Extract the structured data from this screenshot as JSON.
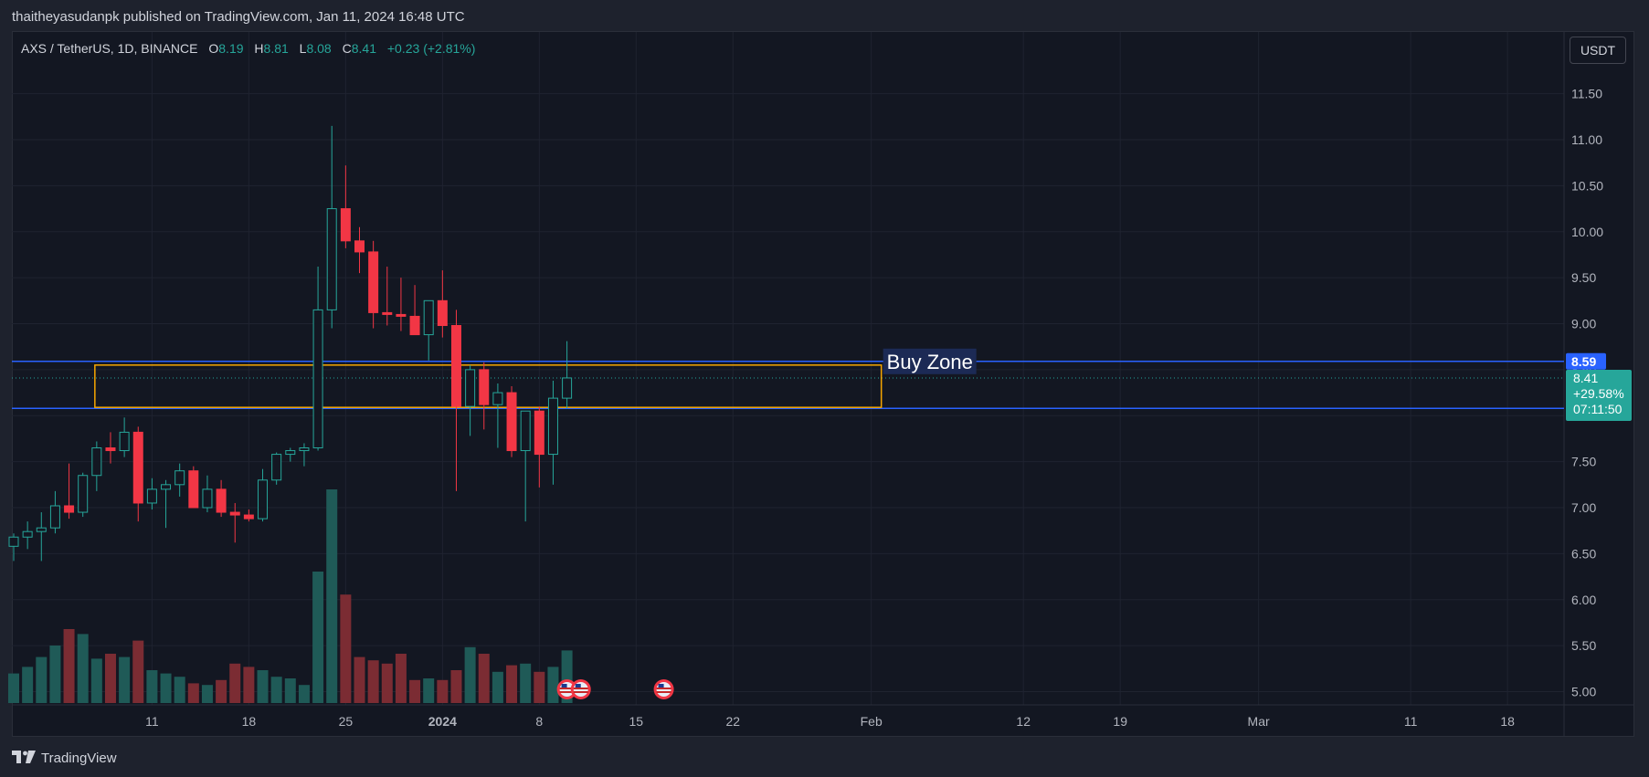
{
  "header": {
    "published_text": "thaitheyasudanpk published on TradingView.com, Jan 11, 2024 16:48 UTC"
  },
  "legend": {
    "symbol": "AXS / TetherUS, 1D, BINANCE",
    "o_label": "O",
    "o": "8.19",
    "h_label": "H",
    "h": "8.81",
    "l_label": "L",
    "l": "8.08",
    "c_label": "C",
    "c": "8.41",
    "change": "+0.23 (+2.81%)"
  },
  "currency_button": "USDT",
  "footer": {
    "brand": "TradingView"
  },
  "colors": {
    "up": "#26a69a",
    "down": "#f23645",
    "zone": "#f7a600",
    "level": "#2962ff",
    "background": "#131722"
  },
  "chart_data": {
    "type": "candlestick",
    "ylim": [
      4.8,
      11.8
    ],
    "y_ticks": [
      "11.50",
      "11.00",
      "10.50",
      "10.00",
      "9.50",
      "9.00",
      "8.50",
      "8.00",
      "7.50",
      "7.00",
      "6.50",
      "6.00",
      "5.50",
      "5.00"
    ],
    "x_ticks": [
      {
        "label": "11",
        "day": 10
      },
      {
        "label": "18",
        "day": 17
      },
      {
        "label": "25",
        "day": 24
      },
      {
        "label": "2024",
        "day": 31
      },
      {
        "label": "8",
        "day": 38
      },
      {
        "label": "15",
        "day": 45
      },
      {
        "label": "22",
        "day": 52
      },
      {
        "label": "Feb",
        "day": 62
      },
      {
        "label": "12",
        "day": 73
      },
      {
        "label": "19",
        "day": 80
      },
      {
        "label": "Mar",
        "day": 90
      },
      {
        "label": "11",
        "day": 101
      },
      {
        "label": "18",
        "day": 108
      }
    ],
    "candles": [
      {
        "o": 6.58,
        "h": 6.72,
        "l": 6.42,
        "c": 6.68,
        "vol": 0.18
      },
      {
        "o": 6.68,
        "h": 6.85,
        "l": 6.55,
        "c": 6.74,
        "vol": 0.22
      },
      {
        "o": 6.74,
        "h": 6.95,
        "l": 6.42,
        "c": 6.78,
        "vol": 0.28
      },
      {
        "o": 6.78,
        "h": 7.18,
        "l": 6.72,
        "c": 7.02,
        "vol": 0.35
      },
      {
        "o": 7.02,
        "h": 7.48,
        "l": 6.88,
        "c": 6.95,
        "vol": 0.45
      },
      {
        "o": 6.95,
        "h": 7.38,
        "l": 6.9,
        "c": 7.35,
        "vol": 0.42
      },
      {
        "o": 7.35,
        "h": 7.72,
        "l": 7.18,
        "c": 7.65,
        "vol": 0.27
      },
      {
        "o": 7.65,
        "h": 7.82,
        "l": 7.48,
        "c": 7.62,
        "vol": 0.3
      },
      {
        "o": 7.62,
        "h": 7.98,
        "l": 7.55,
        "c": 7.82,
        "vol": 0.28
      },
      {
        "o": 7.82,
        "h": 7.88,
        "l": 6.85,
        "c": 7.05,
        "vol": 0.38
      },
      {
        "o": 7.05,
        "h": 7.32,
        "l": 6.98,
        "c": 7.2,
        "vol": 0.2
      },
      {
        "o": 7.2,
        "h": 7.3,
        "l": 6.78,
        "c": 7.25,
        "vol": 0.18
      },
      {
        "o": 7.25,
        "h": 7.48,
        "l": 7.12,
        "c": 7.4,
        "vol": 0.16
      },
      {
        "o": 7.4,
        "h": 7.45,
        "l": 7.0,
        "c": 7.0,
        "vol": 0.12
      },
      {
        "o": 7.0,
        "h": 7.35,
        "l": 6.95,
        "c": 7.2,
        "vol": 0.11
      },
      {
        "o": 7.2,
        "h": 7.3,
        "l": 6.9,
        "c": 6.95,
        "vol": 0.14
      },
      {
        "o": 6.95,
        "h": 7.05,
        "l": 6.62,
        "c": 6.92,
        "vol": 0.24
      },
      {
        "o": 6.92,
        "h": 6.98,
        "l": 6.85,
        "c": 6.88,
        "vol": 0.22
      },
      {
        "o": 6.88,
        "h": 7.42,
        "l": 6.85,
        "c": 7.3,
        "vol": 0.2
      },
      {
        "o": 7.3,
        "h": 7.6,
        "l": 7.25,
        "c": 7.58,
        "vol": 0.16
      },
      {
        "o": 7.58,
        "h": 7.65,
        "l": 7.5,
        "c": 7.62,
        "vol": 0.15
      },
      {
        "o": 7.62,
        "h": 7.7,
        "l": 7.45,
        "c": 7.65,
        "vol": 0.11
      },
      {
        "o": 7.65,
        "h": 9.62,
        "l": 7.62,
        "c": 9.15,
        "vol": 0.8
      },
      {
        "o": 9.15,
        "h": 11.15,
        "l": 8.95,
        "c": 10.25,
        "vol": 1.3
      },
      {
        "o": 10.25,
        "h": 10.72,
        "l": 9.82,
        "c": 9.9,
        "vol": 0.66
      },
      {
        "o": 9.9,
        "h": 10.05,
        "l": 9.55,
        "c": 9.78,
        "vol": 0.28
      },
      {
        "o": 9.78,
        "h": 9.9,
        "l": 8.95,
        "c": 9.12,
        "vol": 0.26
      },
      {
        "o": 9.12,
        "h": 9.62,
        "l": 8.98,
        "c": 9.1,
        "vol": 0.24
      },
      {
        "o": 9.1,
        "h": 9.5,
        "l": 8.92,
        "c": 9.08,
        "vol": 0.3
      },
      {
        "o": 9.08,
        "h": 9.42,
        "l": 8.9,
        "c": 8.88,
        "vol": 0.14
      },
      {
        "o": 8.88,
        "h": 9.25,
        "l": 8.6,
        "c": 9.25,
        "vol": 0.15
      },
      {
        "o": 9.25,
        "h": 9.58,
        "l": 8.85,
        "c": 8.98,
        "vol": 0.14
      },
      {
        "o": 8.98,
        "h": 9.15,
        "l": 7.18,
        "c": 8.1,
        "vol": 0.2
      },
      {
        "o": 8.1,
        "h": 8.55,
        "l": 7.78,
        "c": 8.5,
        "vol": 0.34
      },
      {
        "o": 8.5,
        "h": 8.58,
        "l": 7.85,
        "c": 8.12,
        "vol": 0.3
      },
      {
        "o": 8.12,
        "h": 8.35,
        "l": 7.65,
        "c": 8.25,
        "vol": 0.19
      },
      {
        "o": 8.25,
        "h": 8.32,
        "l": 7.55,
        "c": 7.62,
        "vol": 0.23
      },
      {
        "o": 7.62,
        "h": 8.05,
        "l": 6.85,
        "c": 8.05,
        "vol": 0.24
      },
      {
        "o": 8.05,
        "h": 8.1,
        "l": 7.22,
        "c": 7.58,
        "vol": 0.19
      },
      {
        "o": 7.58,
        "h": 8.38,
        "l": 7.25,
        "c": 8.19,
        "vol": 0.22
      },
      {
        "o": 8.19,
        "h": 8.81,
        "l": 8.08,
        "c": 8.41,
        "vol": 0.32
      }
    ],
    "annotations": {
      "zone_label": "Buy Zone",
      "zone_top": 8.55,
      "zone_bottom": 8.09,
      "zone_start_day": 6,
      "zone_end_day": 62,
      "upper_level": "8.59",
      "upper_value": 8.59,
      "lower_level": "8.08",
      "lower_value": 8.08,
      "last_price": "8.41",
      "last_price_value": 8.41,
      "last_change": "+29.58%",
      "countdown": "07:11:50"
    },
    "event_icons_days": [
      40,
      41,
      47
    ]
  }
}
